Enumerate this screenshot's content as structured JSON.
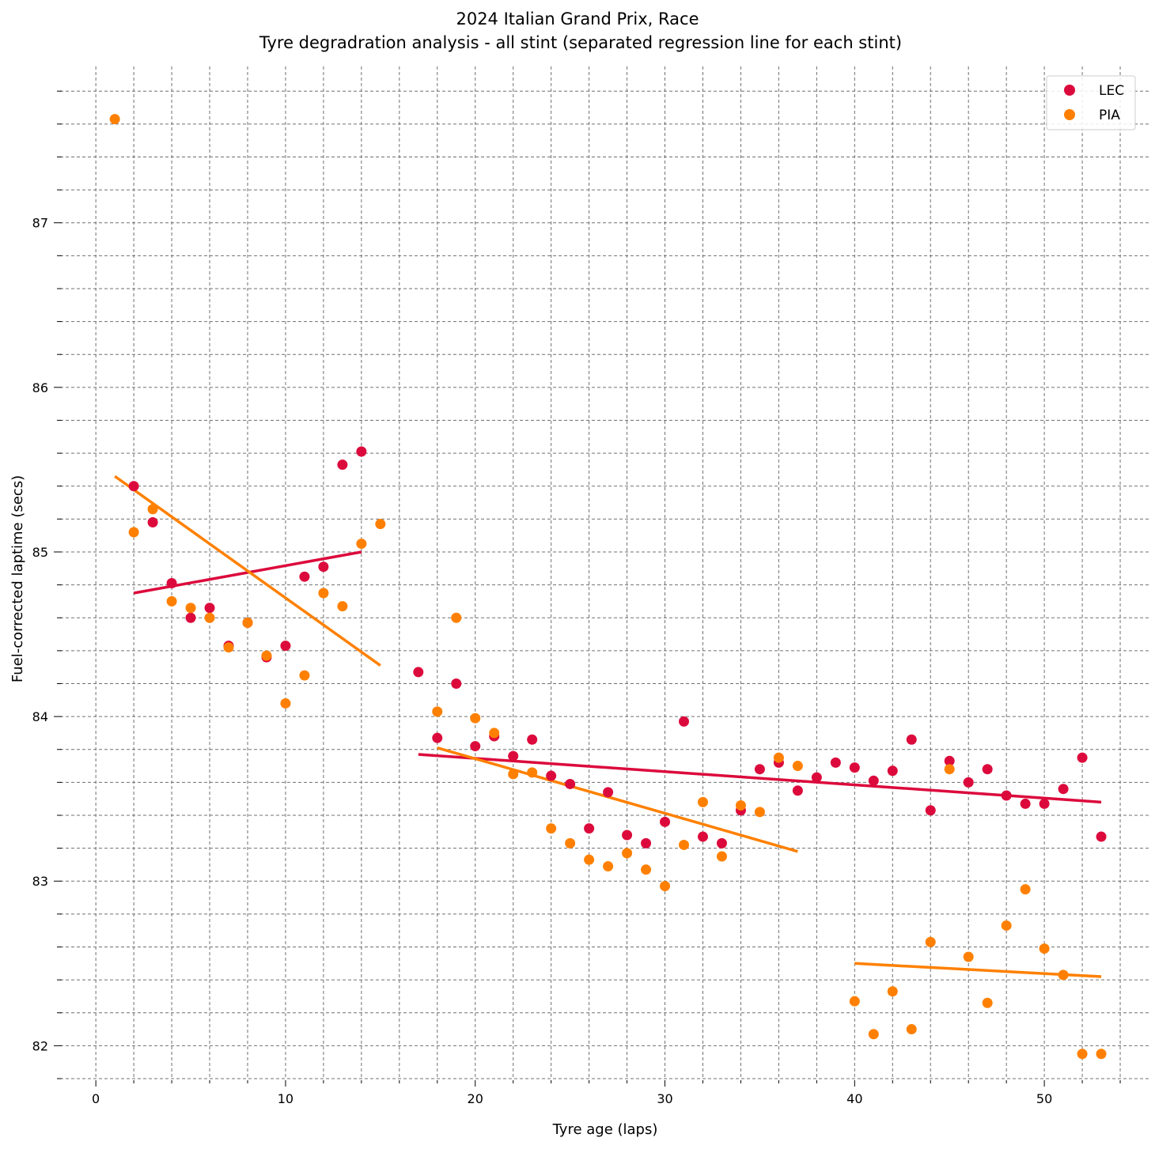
{
  "chart_data": {
    "type": "scatter",
    "title": "2024 Italian Grand Prix, Race",
    "subtitle": "Tyre degradration analysis - all stint (separated regression line for each stint)",
    "xlabel": "Tyre age (laps)",
    "ylabel": "Fuel-corrected laptime (secs)",
    "xlim": [
      -2.3,
      55.5
    ],
    "ylim": [
      81.8,
      87.95
    ],
    "xticks": [
      0,
      10,
      20,
      30,
      40,
      50
    ],
    "yticks": [
      82,
      83,
      84,
      85,
      86,
      87
    ],
    "grid": true,
    "legend_position": "top-right",
    "series": [
      {
        "name": "LEC",
        "color": "#dc0a3c",
        "points": [
          [
            2,
            85.4
          ],
          [
            3,
            85.18
          ],
          [
            4,
            84.81
          ],
          [
            5,
            84.6
          ],
          [
            6,
            84.66
          ],
          [
            7,
            84.43
          ],
          [
            8,
            84.57
          ],
          [
            9,
            84.36
          ],
          [
            10,
            84.43
          ],
          [
            11,
            84.85
          ],
          [
            12,
            84.91
          ],
          [
            13,
            85.53
          ],
          [
            14,
            85.61
          ],
          [
            17,
            84.27
          ],
          [
            18,
            83.87
          ],
          [
            19,
            84.2
          ],
          [
            20,
            83.82
          ],
          [
            21,
            83.88
          ],
          [
            22,
            83.76
          ],
          [
            23,
            83.86
          ],
          [
            24,
            83.64
          ],
          [
            25,
            83.59
          ],
          [
            26,
            83.32
          ],
          [
            27,
            83.54
          ],
          [
            28,
            83.28
          ],
          [
            29,
            83.23
          ],
          [
            30,
            83.36
          ],
          [
            31,
            83.97
          ],
          [
            32,
            83.27
          ],
          [
            33,
            83.23
          ],
          [
            34,
            83.43
          ],
          [
            35,
            83.68
          ],
          [
            36,
            83.72
          ],
          [
            37,
            83.55
          ],
          [
            38,
            83.63
          ],
          [
            39,
            83.72
          ],
          [
            40,
            83.69
          ],
          [
            41,
            83.61
          ],
          [
            42,
            83.67
          ],
          [
            43,
            83.86
          ],
          [
            44,
            83.43
          ],
          [
            45,
            83.73
          ],
          [
            46,
            83.6
          ],
          [
            47,
            83.68
          ],
          [
            48,
            83.52
          ],
          [
            49,
            83.47
          ],
          [
            50,
            83.47
          ],
          [
            51,
            83.56
          ],
          [
            52,
            83.75
          ],
          [
            53,
            83.27
          ]
        ],
        "regressions": [
          {
            "x": [
              2,
              14
            ],
            "y": [
              84.75,
              85.0
            ]
          },
          {
            "x": [
              17,
              53
            ],
            "y": [
              83.77,
              83.48
            ]
          }
        ]
      },
      {
        "name": "PIA",
        "color": "#ff8000",
        "points": [
          [
            1,
            87.63
          ],
          [
            2,
            85.12
          ],
          [
            3,
            85.26
          ],
          [
            4,
            84.7
          ],
          [
            5,
            84.66
          ],
          [
            6,
            84.6
          ],
          [
            7,
            84.42
          ],
          [
            8,
            84.57
          ],
          [
            9,
            84.37
          ],
          [
            10,
            84.08
          ],
          [
            11,
            84.25
          ],
          [
            12,
            84.75
          ],
          [
            13,
            84.67
          ],
          [
            14,
            85.05
          ],
          [
            15,
            85.17
          ],
          [
            18,
            84.03
          ],
          [
            19,
            84.6
          ],
          [
            20,
            83.99
          ],
          [
            21,
            83.9
          ],
          [
            22,
            83.65
          ],
          [
            23,
            83.66
          ],
          [
            24,
            83.32
          ],
          [
            25,
            83.23
          ],
          [
            26,
            83.13
          ],
          [
            27,
            83.09
          ],
          [
            28,
            83.17
          ],
          [
            29,
            83.07
          ],
          [
            30,
            82.97
          ],
          [
            31,
            83.22
          ],
          [
            32,
            83.48
          ],
          [
            33,
            83.15
          ],
          [
            34,
            83.46
          ],
          [
            35,
            83.42
          ],
          [
            36,
            83.75
          ],
          [
            37,
            83.7
          ],
          [
            40,
            82.27
          ],
          [
            41,
            82.07
          ],
          [
            42,
            82.33
          ],
          [
            43,
            82.1
          ],
          [
            44,
            82.63
          ],
          [
            45,
            83.68
          ],
          [
            46,
            82.54
          ],
          [
            47,
            82.26
          ],
          [
            48,
            82.73
          ],
          [
            49,
            82.95
          ],
          [
            50,
            82.59
          ],
          [
            51,
            82.43
          ],
          [
            52,
            81.95
          ],
          [
            53,
            81.95
          ]
        ],
        "regressions": [
          {
            "x": [
              1,
              15
            ],
            "y": [
              85.46,
              84.31
            ]
          },
          {
            "x": [
              18,
              37
            ],
            "y": [
              83.81,
              83.18
            ]
          },
          {
            "x": [
              40,
              53
            ],
            "y": [
              82.5,
              82.42
            ]
          }
        ]
      }
    ]
  }
}
